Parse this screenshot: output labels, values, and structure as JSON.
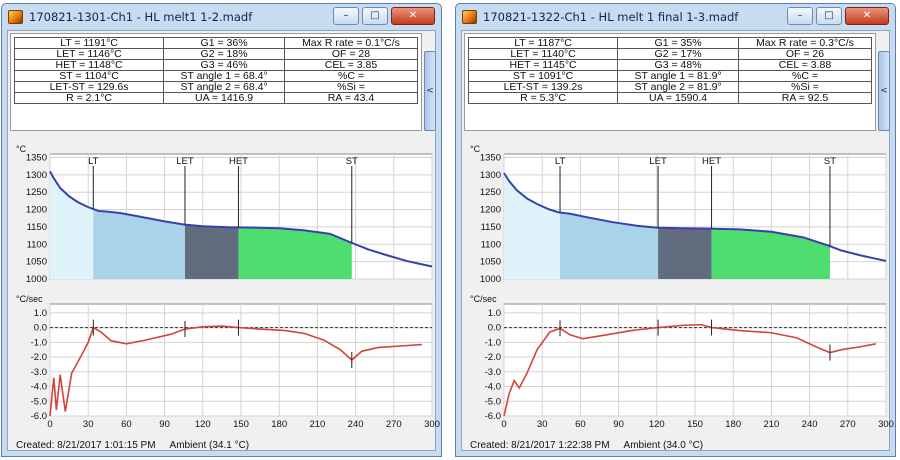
{
  "colors": {
    "curve": "#3a3fae",
    "derivative": "#d2443b",
    "zone_1": "#dff3fa",
    "zone_2": "#a9d3e9",
    "zone_3": "#616d7e",
    "zone_4": "#4ede70"
  },
  "icons": {
    "minimize": "minimize-icon",
    "maximize": "maximize-icon",
    "close": "close-icon",
    "collapse": "chevron-left-icon"
  },
  "window_buttons": {
    "minimize": "–",
    "maximize": "□",
    "close": "✕",
    "collapse": "<"
  },
  "windows": [
    {
      "title": "170821-1301-Ch1 - HL melt1 1-2.madf",
      "table": [
        [
          "LT = 1191°C",
          "G1 = 36%",
          "Max R rate = 0.1°C/s"
        ],
        [
          "LET = 1146°C",
          "G2 = 18%",
          "OF = 28"
        ],
        [
          "HET = 1148°C",
          "G3 = 46%",
          "CEL = 3.85"
        ],
        [
          "ST = 1104°C",
          "ST angle 1 = 68.4°",
          "%C ="
        ],
        [
          "LET-ST = 129.6s",
          "ST angle 2 = 68.4°",
          "%Si ="
        ],
        [
          "R = 2.1°C",
          "UA = 1416.9",
          "RA = 43.4"
        ]
      ],
      "status": {
        "created": "Created: 8/21/2017 1:01:15 PM",
        "ambient": "Ambient  (34.1 °C)"
      }
    },
    {
      "title": "170821-1322-Ch1 - HL melt 1 final 1-3.madf",
      "table": [
        [
          "LT = 1187°C",
          "G1 = 35%",
          "Max R rate = 0.3°C/s"
        ],
        [
          "LET = 1140°C",
          "G2 = 17%",
          "OF = 26"
        ],
        [
          "HET = 1145°C",
          "G3 = 48%",
          "CEL = 3.88"
        ],
        [
          "ST = 1091°C",
          "ST angle 1 = 81.9°",
          "%C ="
        ],
        [
          "LET-ST = 139.2s",
          "ST angle 2 = 81.9°",
          "%Si ="
        ],
        [
          "R = 5.3°C",
          "UA = 1590.4",
          "RA = 92.5"
        ]
      ],
      "status": {
        "created": "Created: 8/21/2017 1:22:38 PM",
        "ambient": "Ambient  (34.0 °C)"
      }
    }
  ],
  "chart_data": [
    {
      "type": "line",
      "panel": "temperature",
      "ylabel": "°C",
      "ylim": [
        1000,
        1360
      ],
      "yticks": [
        1000,
        1050,
        1100,
        1150,
        1200,
        1250,
        1300,
        1350
      ],
      "ytick_labels": [
        "1000",
        "1050",
        "1100",
        "1150",
        "1200",
        "1250",
        "1300",
        "1350"
      ],
      "xlim": [
        0,
        300
      ],
      "grid": true,
      "series": [
        {
          "values": [
            [
              0,
              1310
            ],
            [
              3,
              1290
            ],
            [
              8,
              1262
            ],
            [
              15,
              1238
            ],
            [
              22,
              1221
            ],
            [
              30,
              1207
            ],
            [
              38,
              1196
            ],
            [
              45,
              1194
            ],
            [
              55,
              1190
            ],
            [
              70,
              1180
            ],
            [
              90,
              1166
            ],
            [
              105,
              1157
            ],
            [
              120,
              1152
            ],
            [
              140,
              1149
            ],
            [
              160,
              1148
            ],
            [
              180,
              1146
            ],
            [
              200,
              1140
            ],
            [
              220,
              1130
            ],
            [
              237,
              1104
            ],
            [
              250,
              1085
            ],
            [
              265,
              1068
            ],
            [
              280,
              1052
            ],
            [
              290,
              1044
            ],
            [
              300,
              1036
            ]
          ]
        }
      ],
      "events": [
        {
          "label": "LT",
          "x": 34
        },
        {
          "label": "LET",
          "x": 106
        },
        {
          "label": "HET",
          "x": 148
        },
        {
          "label": "ST",
          "x": 237
        }
      ],
      "fill_bounds": [
        0,
        34,
        106,
        148,
        237
      ]
    },
    {
      "type": "line",
      "panel": "cooling-rate",
      "ylabel": "°C/sec",
      "ylim": [
        -6,
        1.6
      ],
      "yticks": [
        -6,
        -5,
        -4,
        -3,
        -2,
        -1,
        0,
        1
      ],
      "ytick_labels": [
        "-6.0",
        "-5.0",
        "-4.0",
        "-3.0",
        "-2.0",
        "-1.0",
        "0.0",
        "1.0"
      ],
      "xlim": [
        0,
        300
      ],
      "xticks": [
        0,
        30,
        60,
        90,
        120,
        150,
        180,
        210,
        240,
        270,
        300
      ],
      "xtick_labels": [
        "0",
        "30",
        "60",
        "90",
        "120",
        "150",
        "180",
        "210",
        "240",
        "270",
        "300"
      ],
      "grid": true,
      "series": [
        {
          "values": [
            [
              0,
              -6
            ],
            [
              3,
              -3.4
            ],
            [
              5,
              -5.6
            ],
            [
              8,
              -3.2
            ],
            [
              12,
              -5.7
            ],
            [
              17,
              -3.1
            ],
            [
              24,
              -2
            ],
            [
              30,
              -1
            ],
            [
              34,
              0
            ],
            [
              40,
              -0.3
            ],
            [
              48,
              -0.9
            ],
            [
              60,
              -1.1
            ],
            [
              75,
              -0.85
            ],
            [
              95,
              -0.45
            ],
            [
              106,
              -0.1
            ],
            [
              120,
              0.05
            ],
            [
              135,
              0.1
            ],
            [
              148,
              0.0
            ],
            [
              165,
              -0.1
            ],
            [
              185,
              -0.2
            ],
            [
              200,
              -0.4
            ],
            [
              215,
              -0.85
            ],
            [
              228,
              -1.5
            ],
            [
              237,
              -2.2
            ],
            [
              245,
              -1.6
            ],
            [
              258,
              -1.35
            ],
            [
              275,
              -1.25
            ],
            [
              292,
              -1.15
            ]
          ]
        }
      ],
      "markers": [
        34,
        106,
        148,
        237
      ]
    },
    {
      "type": "line",
      "panel": "temperature",
      "ylabel": "°C",
      "ylim": [
        1000,
        1360
      ],
      "yticks": [
        1000,
        1050,
        1100,
        1150,
        1200,
        1250,
        1300,
        1350
      ],
      "ytick_labels": [
        "1000",
        "1050",
        "1100",
        "1150",
        "1200",
        "1250",
        "1300",
        "1350"
      ],
      "xlim": [
        0,
        300
      ],
      "grid": true,
      "series": [
        {
          "values": [
            [
              0,
              1305
            ],
            [
              4,
              1282
            ],
            [
              10,
              1256
            ],
            [
              18,
              1232
            ],
            [
              26,
              1216
            ],
            [
              35,
              1201
            ],
            [
              43,
              1192
            ],
            [
              52,
              1188
            ],
            [
              65,
              1178
            ],
            [
              85,
              1164
            ],
            [
              105,
              1153
            ],
            [
              120,
              1148
            ],
            [
              140,
              1146
            ],
            [
              160,
              1145
            ],
            [
              185,
              1143
            ],
            [
              210,
              1136
            ],
            [
              235,
              1120
            ],
            [
              255,
              1096
            ],
            [
              265,
              1082
            ],
            [
              280,
              1068
            ],
            [
              290,
              1060
            ],
            [
              300,
              1052
            ]
          ]
        }
      ],
      "events": [
        {
          "label": "LT",
          "x": 44
        },
        {
          "label": "LET",
          "x": 121
        },
        {
          "label": "HET",
          "x": 163
        },
        {
          "label": "ST",
          "x": 256
        }
      ],
      "fill_bounds": [
        0,
        44,
        121,
        163,
        256
      ]
    },
    {
      "type": "line",
      "panel": "cooling-rate",
      "ylabel": "°C/sec",
      "ylim": [
        -6,
        1.6
      ],
      "yticks": [
        -6,
        -5,
        -4,
        -3,
        -2,
        -1,
        0,
        1
      ],
      "ytick_labels": [
        "-6.0",
        "-5.0",
        "-4.0",
        "-3.0",
        "-2.0",
        "-1.0",
        "0.0",
        "1.0"
      ],
      "xlim": [
        0,
        300
      ],
      "xticks": [
        0,
        30,
        60,
        90,
        120,
        150,
        180,
        210,
        240,
        270,
        300
      ],
      "xtick_labels": [
        "0",
        "30",
        "60",
        "90",
        "120",
        "150",
        "180",
        "210",
        "240",
        "270",
        "300"
      ],
      "grid": true,
      "series": [
        {
          "values": [
            [
              0,
              -6
            ],
            [
              4,
              -4.5
            ],
            [
              8,
              -3.6
            ],
            [
              12,
              -4.1
            ],
            [
              18,
              -3.1
            ],
            [
              26,
              -1.5
            ],
            [
              36,
              -0.3
            ],
            [
              44,
              -0.05
            ],
            [
              52,
              -0.5
            ],
            [
              62,
              -0.75
            ],
            [
              80,
              -0.5
            ],
            [
              100,
              -0.2
            ],
            [
              121,
              0.0
            ],
            [
              140,
              0.15
            ],
            [
              155,
              0.2
            ],
            [
              163,
              0.0
            ],
            [
              185,
              -0.2
            ],
            [
              210,
              -0.35
            ],
            [
              230,
              -0.7
            ],
            [
              245,
              -1.3
            ],
            [
              256,
              -1.7
            ],
            [
              265,
              -1.5
            ],
            [
              280,
              -1.3
            ],
            [
              292,
              -1.1
            ]
          ]
        }
      ],
      "markers": [
        44,
        121,
        163,
        256
      ]
    }
  ]
}
